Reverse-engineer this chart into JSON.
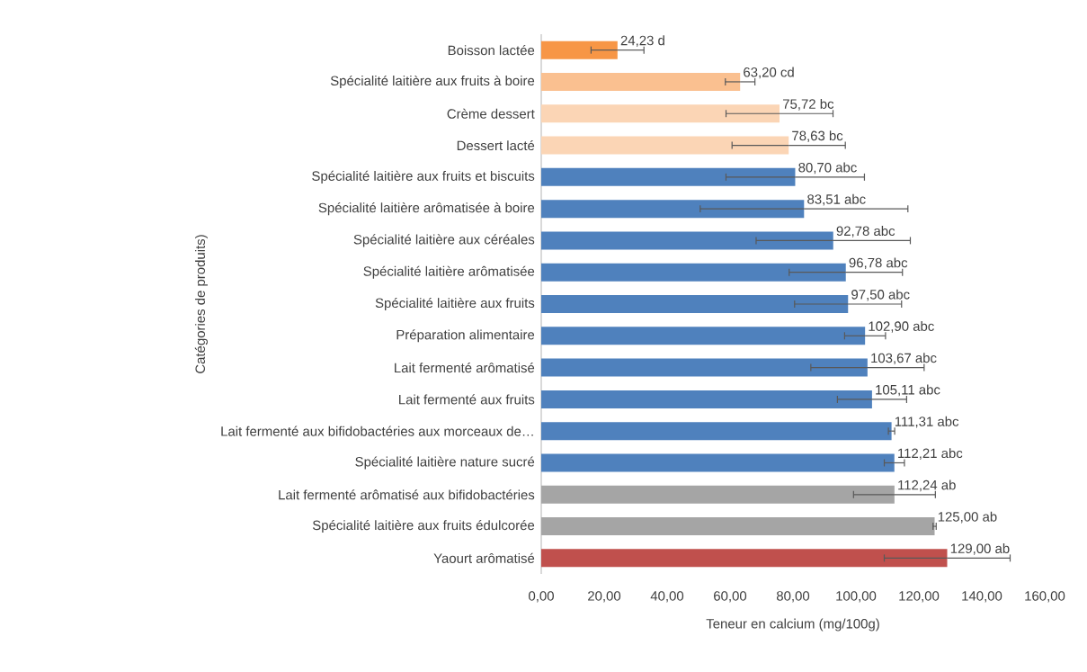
{
  "chart_data": {
    "type": "bar",
    "orientation": "horizontal",
    "xlabel": "Teneur en calcium (mg/100g)",
    "ylabel": "Catégories de produits)",
    "categories": [
      "Boisson lactée",
      "Spécialité laitière aux fruits à boire",
      "Crème dessert",
      "Dessert lacté",
      "Spécialité laitière aux fruits et biscuits",
      "Spécialité laitière arômatisée à boire",
      "Spécialité laitière aux céréales",
      "Spécialité laitière arômatisée",
      "Spécialité laitière aux fruits",
      "Préparation alimentaire",
      "Lait fermenté arômatisé",
      "Lait fermenté aux fruits",
      "Lait fermenté aux bifidobactéries aux morceaux de…",
      "Spécialité laitière nature sucré",
      "Lait fermenté arômatisé aux bifidobactéries",
      "Spécialité laitière aux fruits édulcorée",
      "Yaourt arômatisé"
    ],
    "values": [
      24.23,
      63.2,
      75.72,
      78.63,
      80.7,
      83.51,
      92.78,
      96.78,
      97.5,
      102.9,
      103.67,
      105.11,
      111.31,
      112.21,
      112.24,
      125.0,
      129.0
    ],
    "errors": [
      8.4,
      4.7,
      17,
      18,
      22,
      33,
      24.5,
      18,
      17,
      6.5,
      18,
      11,
      1,
      3.2,
      13,
      0.5,
      20
    ],
    "value_labels": [
      "24,23 d",
      "63,20 cd",
      "75,72 bc",
      "78,63 bc",
      "80,70  abc",
      "83,51 abc",
      "92,78 abc",
      "96,78 abc",
      "97,50 abc",
      "102,90 abc",
      "103,67 abc",
      "105,11 abc",
      "111,31 abc",
      "112,21 abc",
      "112,24 ab",
      "125,00 ab",
      "129,00 ab"
    ],
    "colors": [
      "#f79646",
      "#fac090",
      "#fbd5b5",
      "#fbd5b5",
      "#4f81bd",
      "#4f81bd",
      "#4f81bd",
      "#4f81bd",
      "#4f81bd",
      "#4f81bd",
      "#4f81bd",
      "#4f81bd",
      "#4f81bd",
      "#4f81bd",
      "#a5a5a5",
      "#a5a5a5",
      "#c0504d"
    ],
    "xlim": [
      0,
      160
    ],
    "xticks": [
      {
        "value": 0,
        "label": "0,00"
      },
      {
        "value": 20,
        "label": "20,00"
      },
      {
        "value": 40,
        "label": "40,00"
      },
      {
        "value": 60,
        "label": "60,00"
      },
      {
        "value": 80,
        "label": "80,00"
      },
      {
        "value": 100,
        "label": "100,00"
      },
      {
        "value": 120,
        "label": "120,00"
      },
      {
        "value": 140,
        "label": "140,00"
      },
      {
        "value": 160,
        "label": "160,00"
      }
    ]
  }
}
